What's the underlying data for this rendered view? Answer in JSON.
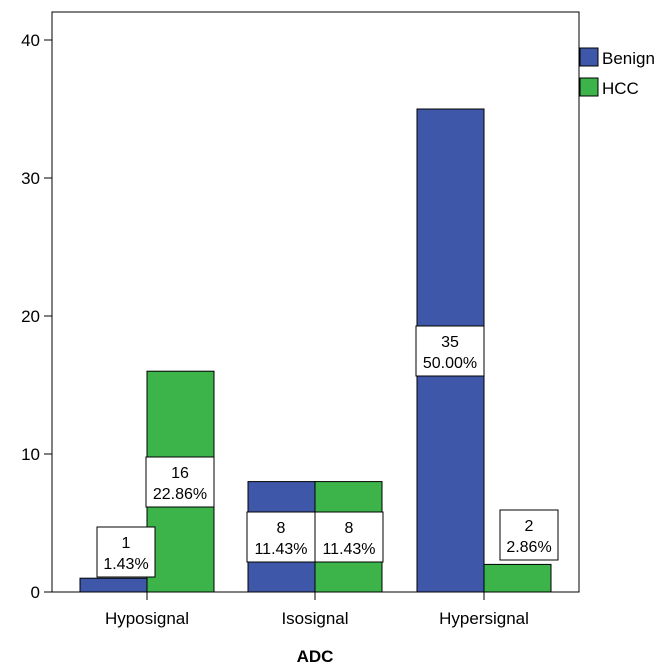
{
  "chart_data": {
    "type": "bar",
    "xlabel": "ADC",
    "ylabel": "",
    "categories": [
      "Hyposignal",
      "Isosignal",
      "Hypersignal"
    ],
    "ylim": [
      0,
      42
    ],
    "yticks": [
      0,
      10,
      20,
      30,
      40
    ],
    "grid": false,
    "legend_position": "top-right",
    "series": [
      {
        "name": "Benign",
        "color": "#3f57a8",
        "values": [
          1,
          8,
          35
        ],
        "labels": [
          {
            "count": "1",
            "percent": "1.43%"
          },
          {
            "count": "8",
            "percent": "11.43%"
          },
          {
            "count": "35",
            "percent": "50.00%"
          }
        ]
      },
      {
        "name": "HCC",
        "color": "#3cb44a",
        "values": [
          16,
          8,
          2
        ],
        "labels": [
          {
            "count": "16",
            "percent": "22.86%"
          },
          {
            "count": "8",
            "percent": "11.43%"
          },
          {
            "count": "2",
            "percent": "2.86%"
          }
        ]
      }
    ]
  }
}
